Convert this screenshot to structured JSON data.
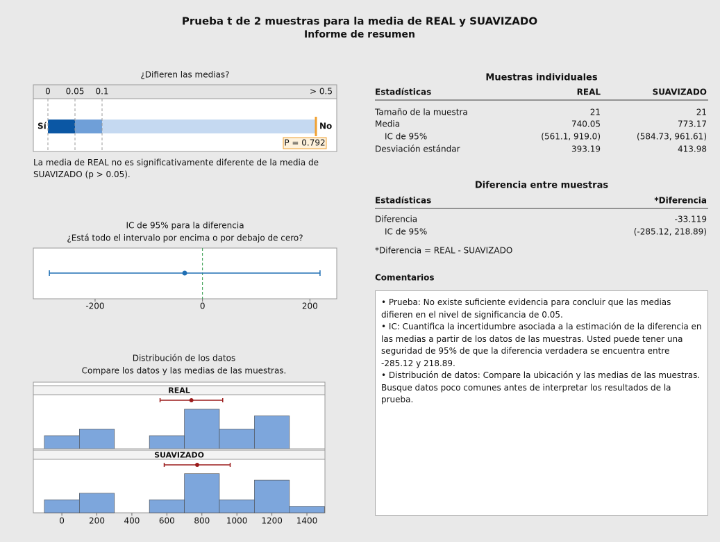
{
  "title": "Prueba t de 2 muestras para la media de REAL y SUAVIZADO",
  "subtitle": "Informe de resumen",
  "chart_data": [
    {
      "type": "pvalue",
      "title": "¿Difieren las medias?",
      "xlim": [
        0,
        0.5
      ],
      "xticks": [
        0,
        0.05,
        0.1,
        {
          "value": 0.5,
          "label": "> 0.5"
        }
      ],
      "p_value": 0.792,
      "value_label": "P = 0.792",
      "low_label": "Sí",
      "high_label": "No",
      "colors": [
        "#0b57a4",
        "#6f9fd8",
        "#c5d9f1"
      ],
      "marker_color": "#f0a030"
    },
    {
      "type": "interval",
      "title": "IC de 95% para la diferencia",
      "subtitle": "¿Está todo el intervalo por encima o por debajo de cero?",
      "estimate": -33.119,
      "interval": [
        -285.12,
        218.89
      ],
      "reference": 0,
      "xlim": [
        -315,
        250
      ],
      "xticks": [
        -200,
        0,
        200
      ],
      "color": "#1f6fb4",
      "reference_color": "#2e9a48"
    },
    {
      "type": "histogram",
      "title": "Distribución de los datos",
      "subtitle": "Compare los datos y las medias de las muestras.",
      "bins": [
        -100,
        100,
        300,
        500,
        700,
        900,
        1100,
        1300,
        1500
      ],
      "xlim": [
        -163,
        1503
      ],
      "ylim": [
        0,
        8.2
      ],
      "xticks": [
        0,
        200,
        400,
        600,
        800,
        1000,
        1200,
        1400
      ],
      "color": "#7da6dc",
      "interval_color": "#9b1b1b",
      "panels": [
        {
          "name": "REAL",
          "values": [
            2,
            3,
            0,
            2,
            6,
            3,
            5,
            0
          ],
          "mean": 740.05,
          "interval": [
            561.1,
            919.0
          ]
        },
        {
          "name": "SUAVIZADO",
          "values": [
            2,
            3,
            0,
            2,
            6,
            2,
            5,
            1
          ],
          "mean": 773.17,
          "interval": [
            584.73,
            961.61
          ]
        }
      ]
    }
  ],
  "conclusion": "La media de REAL no es significativamente diferente de la media de SUAVIZADO (p > 0.05).",
  "individual": {
    "title": "Muestras individuales",
    "header": [
      "Estadísticas",
      "REAL",
      "SUAVIZADO"
    ],
    "rows": [
      [
        "Tamaño de la muestra",
        "21",
        "21"
      ],
      [
        "Media",
        "740.05",
        "773.17"
      ],
      [
        "IC de 95%",
        "(561.1, 919.0)",
        "(584.73, 961.61)"
      ],
      [
        "Desviación estándar",
        "393.19",
        "413.98"
      ]
    ]
  },
  "difference": {
    "title": "Diferencia entre muestras",
    "header": [
      "Estadísticas",
      "*Diferencia"
    ],
    "rows": [
      [
        "Diferencia",
        "-33.119"
      ],
      [
        "IC de 95%",
        "(-285.12, 218.89)"
      ]
    ],
    "note": "*Diferencia = REAL - SUAVIZADO"
  },
  "comments": {
    "title": "Comentarios",
    "items": [
      "Prueba: No existe suficiente evidencia para concluir que las medias difieren en el nivel de significancia de 0.05.",
      "IC: Cuantifica la incertidumbre asociada a la estimación de la diferencia en las medias a partir de los datos de las muestras. Usted puede tener una seguridad de 95% de que la diferencia verdadera se encuentra entre -285.12 y 218.89.",
      "Distribución de datos: Compare la ubicación y las medias de las muestras. Busque datos poco comunes antes de interpretar los resultados de la prueba."
    ]
  }
}
